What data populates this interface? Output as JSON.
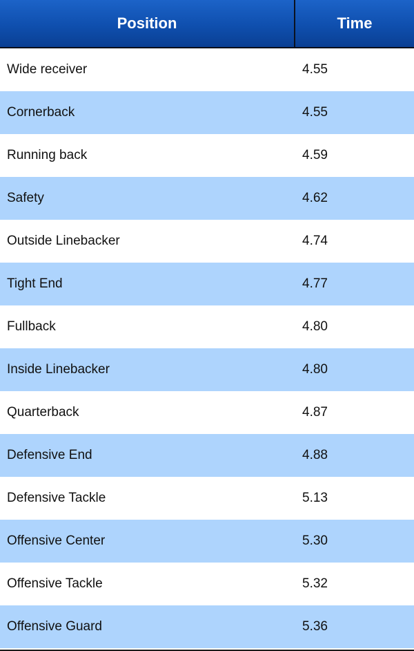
{
  "header": {
    "position_label": "Position",
    "time_label": "Time"
  },
  "colors": {
    "header_bg": "#0f4fae",
    "stripe": "#aed4fd"
  },
  "rows": [
    {
      "position": "Wide receiver",
      "time": "4.55"
    },
    {
      "position": "Cornerback",
      "time": "4.55"
    },
    {
      "position": "Running back",
      "time": "4.59"
    },
    {
      "position": "Safety",
      "time": "4.62"
    },
    {
      "position": "Outside Linebacker",
      "time": "4.74"
    },
    {
      "position": "Tight End",
      "time": "4.77"
    },
    {
      "position": "Fullback",
      "time": "4.80"
    },
    {
      "position": "Inside Linebacker",
      "time": "4.80"
    },
    {
      "position": "Quarterback",
      "time": "4.87"
    },
    {
      "position": "Defensive End",
      "time": "4.88"
    },
    {
      "position": "Defensive Tackle",
      "time": "5.13"
    },
    {
      "position": "Offensive Center",
      "time": "5.30"
    },
    {
      "position": "Offensive Tackle",
      "time": "5.32"
    },
    {
      "position": "Offensive Guard",
      "time": "5.36"
    }
  ]
}
